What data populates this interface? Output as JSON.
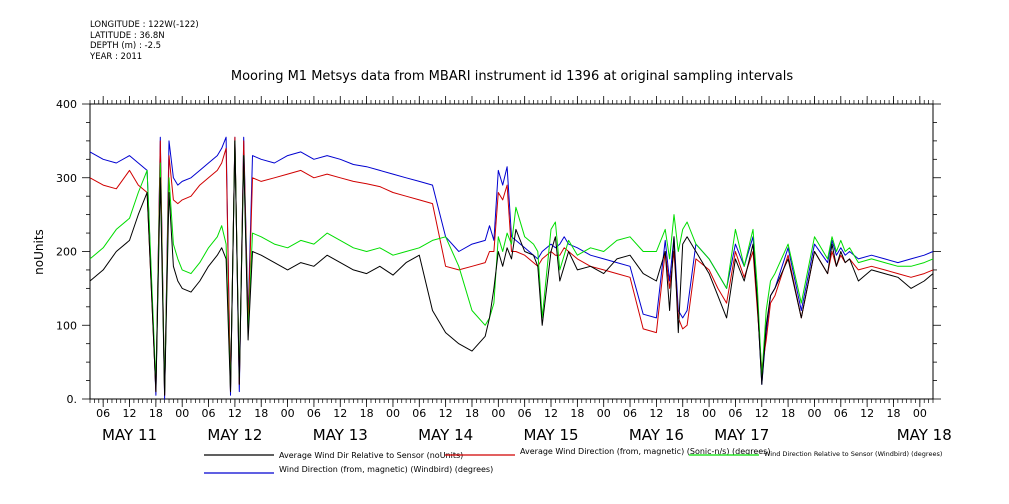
{
  "header": {
    "lines": [
      "LONGITUDE : 122W(-122)",
      "LATITUDE : 36.8N",
      "DEPTH (m) : -2.5",
      "YEAR : 2011"
    ]
  },
  "chart_data": {
    "type": "line",
    "title": "Mooring M1 Metsys data from MBARI instrument id 1396 at original sampling intervals",
    "ylabel": "noUnits",
    "xlabel": "",
    "ylim": [
      0,
      400
    ],
    "y_ticks": [
      "0.",
      "100",
      "200",
      "300",
      "400"
    ],
    "x_range_hours": [
      -21,
      171
    ],
    "x_ticks_hours": [
      "06",
      "12",
      "18",
      "00",
      "06",
      "12",
      "18",
      "00",
      "06",
      "12",
      "18",
      "00",
      "06",
      "12",
      "18",
      "00",
      "06",
      "12",
      "18",
      "00",
      "06",
      "12",
      "18",
      "00",
      "06",
      "12",
      "18",
      "00",
      "06",
      "12",
      "18",
      "00"
    ],
    "day_labels": [
      "MAY 11",
      "MAY 12",
      "MAY 13",
      "MAY 14",
      "MAY 15",
      "MAY 16",
      "MAY 17",
      "MAY 18"
    ],
    "grid": false,
    "legend_placement": "bottom",
    "x_note": "x values are hours relative to 00:00 on MAY 12 (2011)",
    "series": [
      {
        "name": "Average Wind Dir Relative to Sensor (noUnits)",
        "color": "#000000",
        "x": [
          -21,
          -18,
          -15,
          -12,
          -10,
          -8,
          -6,
          -5,
          -4,
          -3,
          -2,
          -1,
          0,
          2,
          4,
          6,
          8,
          9,
          10,
          11,
          12,
          13,
          14,
          15,
          16,
          18,
          21,
          24,
          27,
          30,
          33,
          36,
          39,
          42,
          45,
          48,
          51,
          54,
          57,
          60,
          63,
          66,
          69,
          70,
          71,
          72,
          73,
          74,
          75,
          76,
          78,
          80,
          81,
          82,
          84,
          85,
          86,
          87,
          88,
          90,
          93,
          96,
          99,
          102,
          105,
          108,
          110,
          111,
          112,
          113,
          114,
          115,
          117,
          120,
          122,
          124,
          126,
          128,
          130,
          131,
          132,
          133,
          134,
          135,
          138,
          141,
          144,
          147,
          148,
          149,
          150,
          151,
          152,
          154,
          157,
          160,
          163,
          166,
          169,
          171
        ],
        "y": [
          160,
          175,
          200,
          215,
          250,
          280,
          10,
          300,
          5,
          280,
          180,
          160,
          150,
          145,
          160,
          180,
          195,
          205,
          190,
          10,
          350,
          20,
          330,
          80,
          200,
          195,
          185,
          175,
          185,
          180,
          195,
          185,
          175,
          170,
          180,
          168,
          185,
          195,
          120,
          90,
          75,
          65,
          85,
          110,
          150,
          200,
          180,
          205,
          190,
          230,
          200,
          195,
          180,
          100,
          200,
          220,
          160,
          180,
          200,
          175,
          180,
          170,
          190,
          195,
          170,
          160,
          200,
          120,
          220,
          90,
          210,
          220,
          200,
          170,
          140,
          110,
          190,
          160,
          210,
          130,
          20,
          100,
          140,
          150,
          190,
          110,
          200,
          170,
          210,
          180,
          200,
          185,
          190,
          160,
          175,
          170,
          165,
          150,
          160,
          170
        ]
      },
      {
        "name": "Average Wind Direction (from, magnetic) (Sonic-n/s) (degrees)",
        "color": "#d00000",
        "x": [
          -21,
          -18,
          -15,
          -12,
          -10,
          -8,
          -6,
          -5,
          -4,
          -3,
          -2,
          -1,
          0,
          2,
          4,
          6,
          8,
          9,
          10,
          11,
          12,
          13,
          14,
          15,
          16,
          18,
          21,
          24,
          27,
          30,
          33,
          36,
          39,
          42,
          45,
          48,
          51,
          54,
          57,
          60,
          63,
          66,
          69,
          70,
          71,
          72,
          73,
          74,
          75,
          76,
          78,
          80,
          81,
          82,
          84,
          85,
          86,
          87,
          88,
          90,
          93,
          96,
          99,
          102,
          105,
          108,
          110,
          111,
          112,
          113,
          114,
          115,
          117,
          120,
          122,
          124,
          126,
          128,
          130,
          131,
          132,
          133,
          134,
          135,
          138,
          141,
          144,
          147,
          148,
          149,
          150,
          151,
          152,
          154,
          157,
          160,
          163,
          166,
          169,
          171
        ],
        "y": [
          300,
          290,
          285,
          310,
          290,
          280,
          10,
          350,
          5,
          330,
          270,
          265,
          270,
          275,
          290,
          300,
          310,
          320,
          340,
          10,
          355,
          20,
          350,
          100,
          300,
          295,
          300,
          305,
          310,
          300,
          305,
          300,
          295,
          292,
          288,
          280,
          275,
          270,
          265,
          180,
          175,
          180,
          185,
          200,
          200,
          280,
          270,
          290,
          200,
          200,
          195,
          185,
          180,
          190,
          200,
          195,
          195,
          205,
          200,
          190,
          180,
          175,
          170,
          165,
          95,
          90,
          200,
          150,
          200,
          110,
          95,
          100,
          190,
          175,
          150,
          130,
          200,
          165,
          200,
          120,
          40,
          80,
          130,
          140,
          195,
          110,
          200,
          170,
          200,
          180,
          195,
          185,
          190,
          175,
          180,
          175,
          170,
          165,
          170,
          175
        ]
      },
      {
        "name": "Wind Direction Relative to Sensor (Windbird) (degrees)",
        "color": "#00dd00",
        "x": [
          -21,
          -18,
          -15,
          -12,
          -10,
          -8,
          -6,
          -5,
          -4,
          -3,
          -2,
          -1,
          0,
          2,
          4,
          6,
          8,
          9,
          10,
          11,
          12,
          13,
          14,
          15,
          16,
          18,
          21,
          24,
          27,
          30,
          33,
          36,
          39,
          42,
          45,
          48,
          51,
          54,
          57,
          60,
          63,
          66,
          69,
          70,
          71,
          72,
          73,
          74,
          75,
          76,
          78,
          80,
          81,
          82,
          84,
          85,
          86,
          87,
          88,
          90,
          93,
          96,
          99,
          102,
          105,
          108,
          110,
          111,
          112,
          113,
          114,
          115,
          117,
          120,
          122,
          124,
          126,
          128,
          130,
          131,
          132,
          133,
          134,
          135,
          138,
          141,
          144,
          147,
          148,
          149,
          150,
          151,
          152,
          154,
          157,
          160,
          163,
          166,
          169,
          171
        ],
        "y": [
          190,
          205,
          230,
          245,
          280,
          310,
          20,
          320,
          10,
          300,
          210,
          190,
          175,
          170,
          185,
          205,
          220,
          235,
          210,
          15,
          350,
          30,
          330,
          90,
          225,
          220,
          210,
          205,
          215,
          210,
          225,
          215,
          205,
          200,
          205,
          195,
          200,
          205,
          215,
          220,
          180,
          120,
          100,
          110,
          130,
          220,
          200,
          225,
          210,
          260,
          220,
          210,
          200,
          110,
          230,
          240,
          175,
          195,
          215,
          195,
          205,
          200,
          215,
          220,
          200,
          200,
          230,
          190,
          250,
          200,
          230,
          240,
          210,
          190,
          170,
          150,
          230,
          180,
          230,
          150,
          30,
          120,
          160,
          170,
          210,
          130,
          220,
          190,
          220,
          200,
          215,
          200,
          205,
          185,
          190,
          185,
          180,
          180,
          185,
          190
        ]
      },
      {
        "name": "Wind Direction (from, magnetic) (Windbird) (degrees)",
        "color": "#0000d0",
        "x": [
          -21,
          -18,
          -15,
          -12,
          -10,
          -8,
          -6,
          -5,
          -4,
          -3,
          -2,
          -1,
          0,
          2,
          4,
          6,
          8,
          9,
          10,
          11,
          12,
          13,
          14,
          15,
          16,
          18,
          21,
          24,
          27,
          30,
          33,
          36,
          39,
          42,
          45,
          48,
          51,
          54,
          57,
          60,
          63,
          66,
          69,
          70,
          71,
          72,
          73,
          74,
          75,
          76,
          78,
          80,
          81,
          82,
          84,
          85,
          86,
          87,
          88,
          90,
          93,
          96,
          99,
          102,
          105,
          108,
          110,
          111,
          112,
          113,
          114,
          115,
          117,
          120,
          122,
          124,
          126,
          128,
          130,
          131,
          132,
          133,
          134,
          135,
          138,
          141,
          144,
          147,
          148,
          149,
          150,
          151,
          152,
          154,
          157,
          160,
          163,
          166,
          169,
          171
        ],
        "y": [
          335,
          325,
          320,
          330,
          320,
          310,
          5,
          355,
          0,
          350,
          300,
          290,
          295,
          300,
          310,
          320,
          330,
          340,
          355,
          5,
          355,
          10,
          355,
          110,
          330,
          325,
          320,
          330,
          335,
          325,
          330,
          325,
          318,
          315,
          310,
          305,
          300,
          295,
          290,
          220,
          200,
          210,
          215,
          235,
          215,
          310,
          290,
          315,
          220,
          215,
          205,
          195,
          190,
          200,
          210,
          205,
          210,
          220,
          210,
          205,
          195,
          190,
          185,
          180,
          115,
          110,
          215,
          160,
          220,
          120,
          110,
          120,
          210,
          190,
          170,
          150,
          210,
          180,
          220,
          130,
          20,
          90,
          140,
          150,
          205,
          120,
          210,
          185,
          215,
          195,
          205,
          195,
          200,
          190,
          195,
          190,
          185,
          190,
          195,
          200
        ]
      }
    ]
  }
}
